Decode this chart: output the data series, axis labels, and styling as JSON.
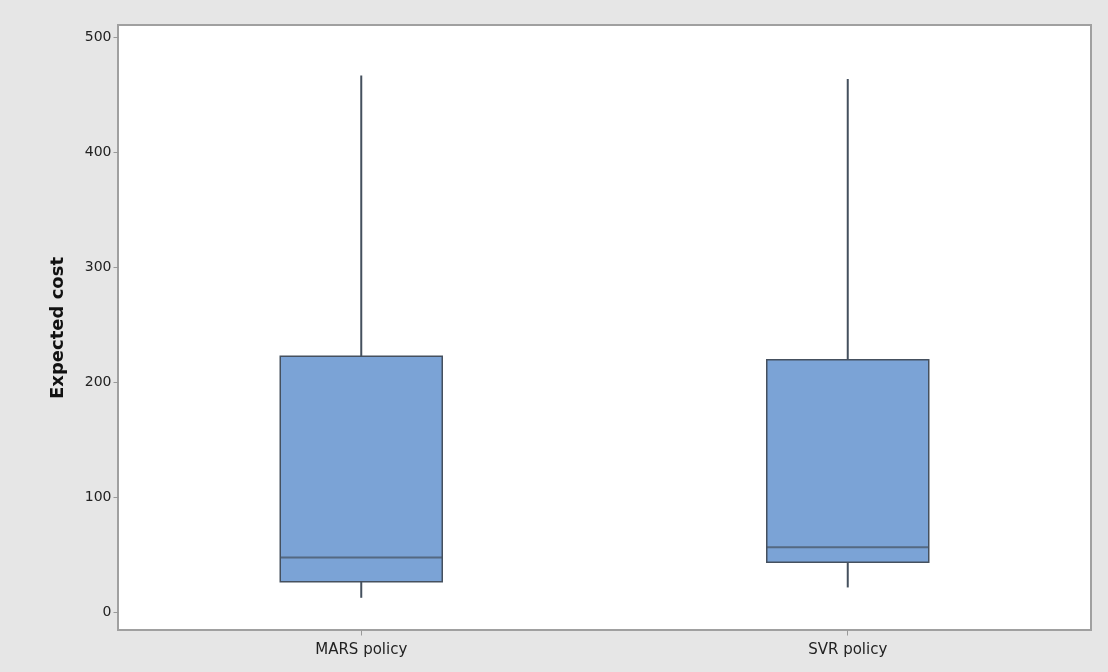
{
  "chart_data": {
    "type": "box",
    "ylabel": "Expected cost",
    "categories": [
      "MARS policy",
      "SVR policy"
    ],
    "series": [
      {
        "color": "#7ba3d6",
        "boxes": [
          {
            "low": 12,
            "q1": 26,
            "median": 47,
            "q3": 222,
            "high": 466
          },
          {
            "low": 21,
            "q1": 43,
            "median": 56,
            "q3": 219,
            "high": 463
          }
        ]
      }
    ],
    "grid": false,
    "ylim": [
      -16,
      510
    ],
    "yticks": [
      0,
      100,
      200,
      300,
      400,
      500
    ]
  }
}
